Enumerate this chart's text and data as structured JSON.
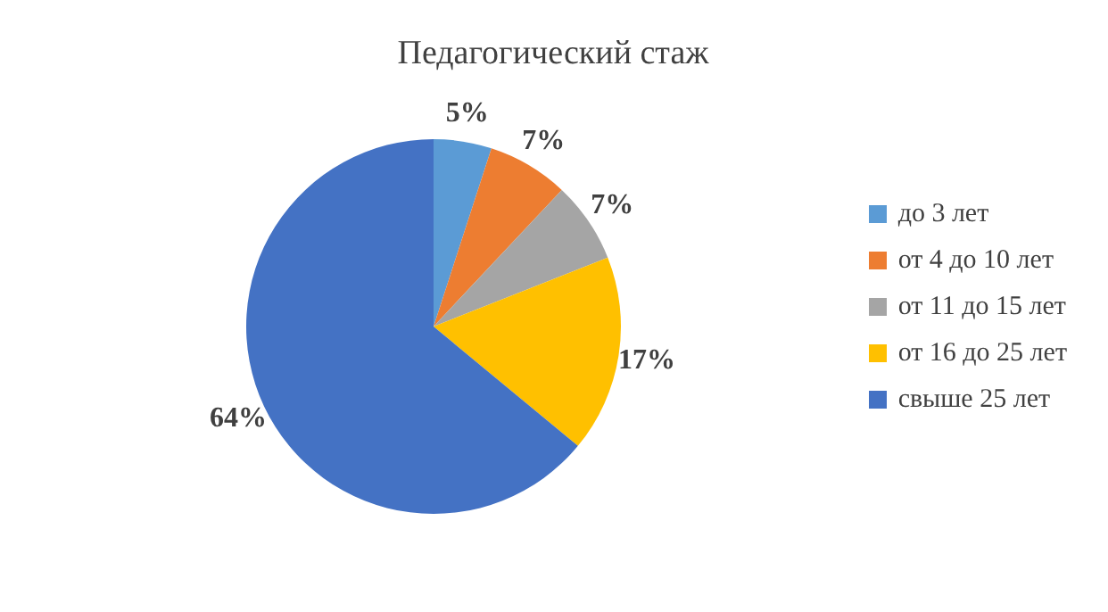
{
  "chart_data": {
    "type": "pie",
    "title": "Педагогический стаж",
    "categories": [
      "до 3 лет",
      "от 4 до 10 лет",
      "от 11 до 15 лет",
      "от 16 до 25 лет",
      "свыше 25 лет"
    ],
    "values": [
      5,
      7,
      7,
      17,
      64
    ],
    "colors": [
      "#5b9bd5",
      "#ed7d31",
      "#a5a5a5",
      "#ffc000",
      "#4472c4"
    ],
    "value_labels": [
      "5%",
      "7%",
      "7%",
      "17%",
      "64%"
    ],
    "legend": "right"
  }
}
